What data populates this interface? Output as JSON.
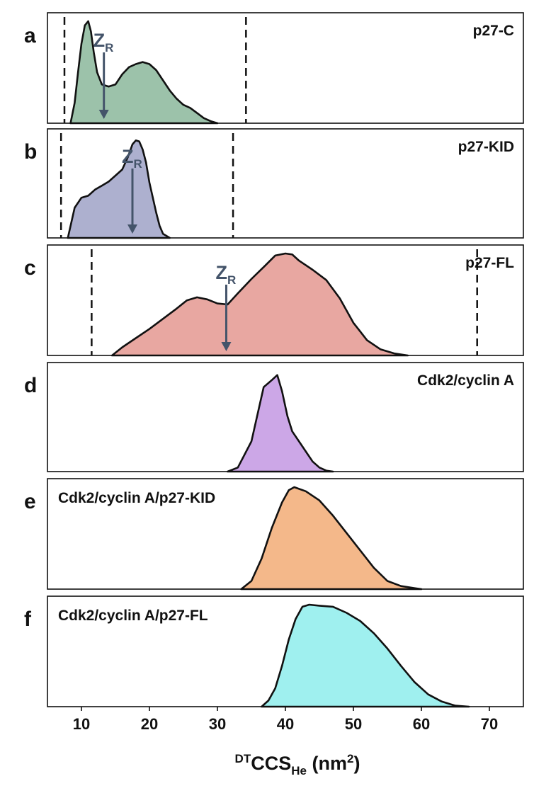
{
  "figure": {
    "xlabel": {
      "superscript": "DT",
      "main": "CCS",
      "subscript": "He",
      "unit_open": " (nm",
      "unit_sup": "2",
      "unit_close": ")"
    },
    "marker_label": {
      "main": "Z",
      "sub": "R"
    },
    "colors": {
      "a": "#9cc2aa",
      "b": "#adb0cf",
      "c": "#e8a7a1",
      "d": "#cca7e7",
      "e": "#f4b88a",
      "f": "#9ff0ef",
      "arrow": "#44546a",
      "line": "#111111"
    }
  },
  "chart_data": {
    "type": "area",
    "xlim": [
      5,
      75
    ],
    "xticks": [
      10,
      20,
      30,
      40,
      50,
      60,
      70
    ],
    "ylim": [
      0,
      1
    ],
    "grid": false,
    "legend": "none",
    "panels": [
      {
        "id": "a",
        "letter": "a",
        "title": "p27-C",
        "title_position": "top-right",
        "dashed_lines": [
          7.5,
          34.2
        ],
        "zr": 13.3,
        "points": [
          [
            8.4,
            0
          ],
          [
            9,
            0.2
          ],
          [
            9.5,
            0.5
          ],
          [
            10,
            0.78
          ],
          [
            10.5,
            0.96
          ],
          [
            11,
            1.0
          ],
          [
            11.4,
            0.9
          ],
          [
            11.8,
            0.7
          ],
          [
            12.3,
            0.5
          ],
          [
            13,
            0.38
          ],
          [
            14,
            0.36
          ],
          [
            15,
            0.38
          ],
          [
            16,
            0.48
          ],
          [
            17,
            0.55
          ],
          [
            18,
            0.58
          ],
          [
            19,
            0.6
          ],
          [
            20,
            0.58
          ],
          [
            21,
            0.52
          ],
          [
            22,
            0.42
          ],
          [
            23,
            0.32
          ],
          [
            24,
            0.24
          ],
          [
            25,
            0.18
          ],
          [
            26,
            0.15
          ],
          [
            27,
            0.1
          ],
          [
            28,
            0.05
          ],
          [
            29,
            0.02
          ],
          [
            30,
            0
          ]
        ]
      },
      {
        "id": "b",
        "letter": "b",
        "title": "p27-KID",
        "title_position": "top-right",
        "dashed_lines": [
          7.0,
          32.3
        ],
        "zr": 17.5,
        "points": [
          [
            8,
            0
          ],
          [
            8.5,
            0.15
          ],
          [
            9,
            0.3
          ],
          [
            10,
            0.4
          ],
          [
            11,
            0.42
          ],
          [
            12,
            0.48
          ],
          [
            13,
            0.52
          ],
          [
            14,
            0.56
          ],
          [
            15,
            0.62
          ],
          [
            16,
            0.68
          ],
          [
            16.8,
            0.8
          ],
          [
            17.5,
            0.93
          ],
          [
            18,
            0.97
          ],
          [
            18.5,
            0.96
          ],
          [
            19,
            0.88
          ],
          [
            19.5,
            0.75
          ],
          [
            20,
            0.55
          ],
          [
            20.5,
            0.4
          ],
          [
            21,
            0.25
          ],
          [
            21.5,
            0.12
          ],
          [
            22,
            0.04
          ],
          [
            23,
            0
          ]
        ]
      },
      {
        "id": "c",
        "letter": "c",
        "title": "p27-FL",
        "title_position": "top-right",
        "dashed_lines": [
          11.5,
          68.2
        ],
        "zr": 31.3,
        "points": [
          [
            14.5,
            0
          ],
          [
            16,
            0.08
          ],
          [
            18,
            0.17
          ],
          [
            20,
            0.26
          ],
          [
            22,
            0.36
          ],
          [
            24,
            0.46
          ],
          [
            25.5,
            0.54
          ],
          [
            27,
            0.57
          ],
          [
            28.5,
            0.55
          ],
          [
            30,
            0.51
          ],
          [
            31.5,
            0.5
          ],
          [
            33,
            0.61
          ],
          [
            35,
            0.75
          ],
          [
            37,
            0.88
          ],
          [
            38.5,
            0.98
          ],
          [
            40,
            1.0
          ],
          [
            41,
            0.99
          ],
          [
            42,
            0.93
          ],
          [
            44,
            0.84
          ],
          [
            46,
            0.74
          ],
          [
            48,
            0.56
          ],
          [
            50,
            0.32
          ],
          [
            52,
            0.15
          ],
          [
            54,
            0.06
          ],
          [
            56,
            0.02
          ],
          [
            58,
            0
          ]
        ]
      },
      {
        "id": "d",
        "letter": "d",
        "title": "Cdk2/cyclin A",
        "title_position": "top-right",
        "dashed_lines": [],
        "zr": null,
        "points": [
          [
            31.5,
            0
          ],
          [
            33,
            0.04
          ],
          [
            35,
            0.3
          ],
          [
            36,
            0.6
          ],
          [
            36.8,
            0.84
          ],
          [
            38,
            0.91
          ],
          [
            38.8,
            0.96
          ],
          [
            39.5,
            0.8
          ],
          [
            40.3,
            0.55
          ],
          [
            41,
            0.4
          ],
          [
            42,
            0.3
          ],
          [
            43,
            0.2
          ],
          [
            44,
            0.1
          ],
          [
            45,
            0.04
          ],
          [
            46,
            0.01
          ],
          [
            47,
            0
          ]
        ]
      },
      {
        "id": "e",
        "letter": "e",
        "title": "Cdk2/cyclin A/p27-KID",
        "title_position": "top-left",
        "dashed_lines": [],
        "zr": null,
        "points": [
          [
            33.5,
            0
          ],
          [
            35,
            0.08
          ],
          [
            36.5,
            0.3
          ],
          [
            38,
            0.6
          ],
          [
            39.5,
            0.85
          ],
          [
            40.5,
            0.97
          ],
          [
            41.3,
            1.0
          ],
          [
            43,
            0.96
          ],
          [
            45,
            0.87
          ],
          [
            47,
            0.72
          ],
          [
            49,
            0.55
          ],
          [
            51,
            0.38
          ],
          [
            53,
            0.21
          ],
          [
            55,
            0.08
          ],
          [
            57,
            0.03
          ],
          [
            59,
            0.01
          ],
          [
            60,
            0
          ]
        ]
      },
      {
        "id": "f",
        "letter": "f",
        "title": "Cdk2/cyclin A/p27-FL",
        "title_position": "top-left",
        "dashed_lines": [],
        "zr": null,
        "points": [
          [
            36.5,
            0
          ],
          [
            37.5,
            0.06
          ],
          [
            38.5,
            0.18
          ],
          [
            39.5,
            0.4
          ],
          [
            40.5,
            0.66
          ],
          [
            41.5,
            0.86
          ],
          [
            42.5,
            0.98
          ],
          [
            43.5,
            1.0
          ],
          [
            45,
            0.99
          ],
          [
            47,
            0.98
          ],
          [
            49,
            0.92
          ],
          [
            51,
            0.84
          ],
          [
            53,
            0.72
          ],
          [
            55,
            0.57
          ],
          [
            57,
            0.4
          ],
          [
            59,
            0.24
          ],
          [
            61,
            0.12
          ],
          [
            63,
            0.05
          ],
          [
            65,
            0.01
          ],
          [
            67,
            0
          ]
        ]
      }
    ]
  }
}
